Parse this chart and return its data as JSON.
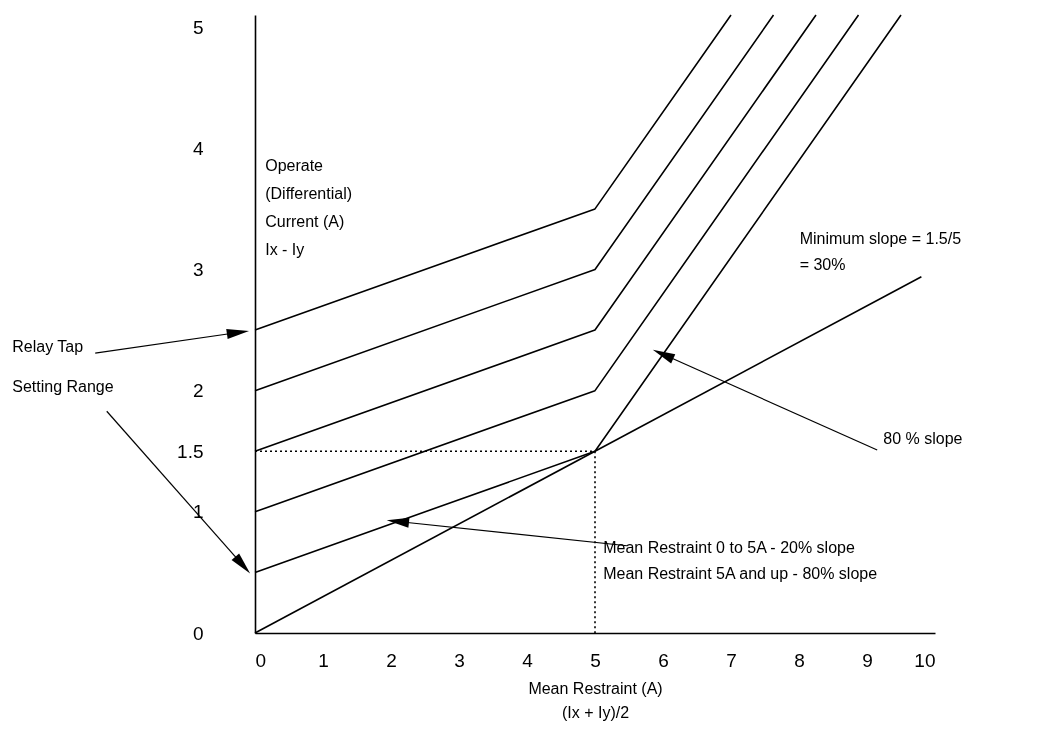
{
  "chart_data": {
    "type": "line",
    "xlabel": "Mean Restraint (A)\n(Ix + Iy)/2",
    "ylabel": "Operate\n(Differential)\nCurrent (A)\nIx - Iy",
    "xlim": [
      0,
      10
    ],
    "ylim": [
      0,
      5.1
    ],
    "xticks": [
      0,
      1,
      2,
      3,
      4,
      5,
      6,
      7,
      8,
      9,
      10
    ],
    "yticks": [
      0,
      1,
      1.5,
      2,
      3,
      4,
      5
    ],
    "grid": false,
    "series": [
      {
        "color": "#000000",
        "line_style": "solid",
        "x": [
          0,
          5,
          9.5
        ],
        "values": [
          0.5,
          1.5,
          5.1
        ]
      },
      {
        "color": "#000000",
        "line_style": "solid",
        "x": [
          0,
          5,
          8.875
        ],
        "values": [
          1,
          2,
          5.1
        ]
      },
      {
        "color": "#000000",
        "line_style": "solid",
        "x": [
          0,
          5,
          8.25
        ],
        "values": [
          1.5,
          2.5,
          5.1
        ]
      },
      {
        "color": "#000000",
        "line_style": "solid",
        "x": [
          0,
          5,
          7.625
        ],
        "values": [
          2,
          3,
          5.1
        ]
      },
      {
        "color": "#000000",
        "line_style": "solid",
        "x": [
          0,
          5,
          7
        ],
        "values": [
          2.5,
          3.5,
          5.1
        ]
      },
      {
        "color": "#000000",
        "line_style": "solid",
        "x": [
          0,
          9.8
        ],
        "values": [
          0,
          2.94
        ]
      },
      {
        "color": "#000000",
        "line_style": "dotted",
        "x": [
          0,
          5,
          5
        ],
        "values": [
          1.5,
          1.5,
          0
        ]
      }
    ],
    "annotations": [
      "Relay Tap\nSetting Range",
      "Minimum slope = 1.5/5\n = 30%",
      {
        "text": "80 % slope",
        "x": 6,
        "y": 2.3
      },
      {
        "text": "Mean Restraint 0 to 5A - 20% slope\nMean Restraint 5A and up - 80% slope",
        "x": 2.1,
        "y": 0.92
      }
    ]
  }
}
